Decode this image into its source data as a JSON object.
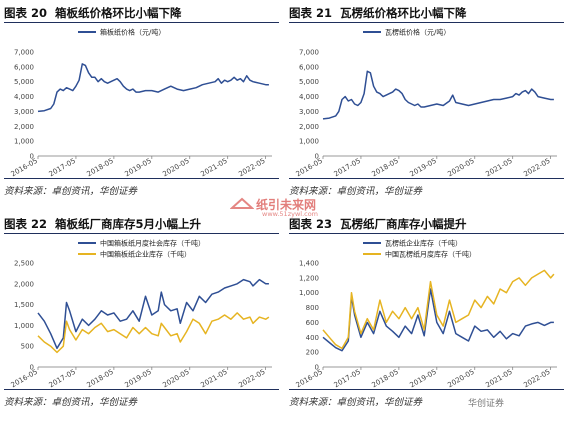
{
  "watermark": {
    "text": "纸引未来网",
    "sub": "www.51zywl.com"
  },
  "corner_mark": "华创证券",
  "colors": {
    "blue": "#2f4f94",
    "gold": "#e6b422",
    "rule": "#1f2f5c"
  },
  "chart_data": [
    {
      "id": "chart20",
      "figure_label": "图表 20",
      "title": "箱板纸价格环比小幅下降",
      "source": "资料来源：卓创资讯，华创证券",
      "type": "line",
      "x_ticks": [
        "2016-05",
        "2017-05",
        "2018-05",
        "2019-05",
        "2020-05",
        "2021-05",
        "2022-05"
      ],
      "x_range": [
        2016.333,
        2022.5
      ],
      "ylim": [
        0,
        7000
      ],
      "y_ticks": [
        0,
        1000,
        2000,
        3000,
        4000,
        5000,
        6000,
        7000
      ],
      "y_tick_labels": [
        "0",
        "1,000",
        "2,000",
        "3,000",
        "4,000",
        "5,000",
        "6,000",
        "7,000"
      ],
      "legend_position": "top",
      "series": [
        {
          "name": "箱板纸价格（元/吨）",
          "color": "#2f4f94",
          "x": [
            2016.333,
            2016.5,
            2016.667,
            2016.75,
            2016.833,
            2016.917,
            2017.0,
            2017.083,
            2017.167,
            2017.25,
            2017.333,
            2017.417,
            2017.5,
            2017.583,
            2017.667,
            2017.75,
            2017.833,
            2017.917,
            2018.0,
            2018.083,
            2018.167,
            2018.25,
            2018.333,
            2018.417,
            2018.5,
            2018.583,
            2018.667,
            2018.75,
            2018.833,
            2018.917,
            2019.0,
            2019.167,
            2019.333,
            2019.5,
            2019.667,
            2019.833,
            2020.0,
            2020.167,
            2020.333,
            2020.5,
            2020.667,
            2020.833,
            2021.0,
            2021.083,
            2021.167,
            2021.25,
            2021.333,
            2021.417,
            2021.5,
            2021.583,
            2021.667,
            2021.75,
            2021.833,
            2021.917,
            2022.0,
            2022.167,
            2022.333,
            2022.417
          ],
          "y": [
            3000,
            3050,
            3200,
            3500,
            4300,
            4500,
            4400,
            4600,
            4500,
            4400,
            4700,
            5100,
            6200,
            6100,
            5600,
            5300,
            5300,
            5000,
            5200,
            5000,
            4900,
            5000,
            5100,
            5200,
            5000,
            4700,
            4500,
            4400,
            4500,
            4300,
            4300,
            4400,
            4400,
            4300,
            4500,
            4700,
            4500,
            4400,
            4500,
            4600,
            4800,
            4900,
            5000,
            5200,
            4900,
            5100,
            5000,
            5100,
            5300,
            5100,
            5200,
            5000,
            5400,
            5100,
            5000,
            4900,
            4800,
            4800
          ]
        }
      ]
    },
    {
      "id": "chart21",
      "figure_label": "图表 21",
      "title": "瓦楞纸价格环比小幅下降",
      "source": "资料来源：卓创资讯，华创证券",
      "type": "line",
      "x_ticks": [
        "2016-05",
        "2017-05",
        "2018-05",
        "2019-05",
        "2020-05",
        "2021-05",
        "2022-05"
      ],
      "x_range": [
        2016.333,
        2022.5
      ],
      "ylim": [
        0,
        7000
      ],
      "y_ticks": [
        0,
        1000,
        2000,
        3000,
        4000,
        5000,
        6000,
        7000
      ],
      "y_tick_labels": [
        "0",
        "1,000",
        "2,000",
        "3,000",
        "4,000",
        "5,000",
        "6,000",
        "7,000"
      ],
      "legend_position": "top",
      "series": [
        {
          "name": "瓦楞纸价格（元/吨）",
          "color": "#2f4f94",
          "x": [
            2016.333,
            2016.5,
            2016.667,
            2016.75,
            2016.833,
            2016.917,
            2017.0,
            2017.083,
            2017.167,
            2017.25,
            2017.333,
            2017.417,
            2017.5,
            2017.583,
            2017.667,
            2017.75,
            2017.833,
            2017.917,
            2018.0,
            2018.083,
            2018.167,
            2018.25,
            2018.333,
            2018.417,
            2018.5,
            2018.583,
            2018.667,
            2018.75,
            2018.833,
            2018.917,
            2019.0,
            2019.167,
            2019.333,
            2019.5,
            2019.667,
            2019.75,
            2019.833,
            2020.0,
            2020.167,
            2020.333,
            2020.5,
            2020.667,
            2020.833,
            2021.0,
            2021.167,
            2021.333,
            2021.417,
            2021.5,
            2021.583,
            2021.667,
            2021.75,
            2021.833,
            2021.917,
            2022.0,
            2022.167,
            2022.333,
            2022.417
          ],
          "y": [
            2500,
            2550,
            2700,
            3000,
            3800,
            4000,
            3700,
            3800,
            3500,
            3400,
            3600,
            4200,
            5700,
            5600,
            4700,
            4300,
            4200,
            4000,
            4100,
            4200,
            4300,
            4500,
            4400,
            4200,
            3800,
            3600,
            3500,
            3400,
            3500,
            3300,
            3300,
            3400,
            3500,
            3400,
            3700,
            4100,
            3600,
            3500,
            3400,
            3500,
            3600,
            3700,
            3800,
            3800,
            3900,
            4000,
            4200,
            4100,
            4300,
            4400,
            4200,
            4500,
            4300,
            4000,
            3900,
            3800,
            3800
          ]
        }
      ]
    },
    {
      "id": "chart22",
      "figure_label": "图表 22",
      "title": "箱板纸厂商库存5月小幅上升",
      "source": "资料来源：卓创资讯，华创证券",
      "type": "line",
      "x_ticks": [
        "2016-05",
        "2017-05",
        "2018-05",
        "2019-05",
        "2020-05",
        "2021-05",
        "2022-05"
      ],
      "x_range": [
        2016.333,
        2022.5
      ],
      "ylim": [
        0,
        2500
      ],
      "y_ticks": [
        0,
        500,
        1000,
        1500,
        2000,
        2500
      ],
      "y_tick_labels": [
        "0",
        "500",
        "1,000",
        "1,500",
        "2,000",
        "2,500"
      ],
      "legend_position": "top",
      "series": [
        {
          "name": "中国箱板纸月度社会库存（千吨）",
          "color": "#2f4f94",
          "x": [
            2016.333,
            2016.5,
            2016.667,
            2016.833,
            2017.0,
            2017.083,
            2017.167,
            2017.333,
            2017.5,
            2017.667,
            2017.833,
            2018.0,
            2018.167,
            2018.333,
            2018.5,
            2018.667,
            2018.833,
            2019.0,
            2019.167,
            2019.333,
            2019.5,
            2019.583,
            2019.667,
            2019.833,
            2020.0,
            2020.083,
            2020.25,
            2020.417,
            2020.583,
            2020.75,
            2020.917,
            2021.083,
            2021.25,
            2021.417,
            2021.583,
            2021.75,
            2021.917,
            2022.0,
            2022.167,
            2022.333,
            2022.417
          ],
          "y": [
            1300,
            1100,
            800,
            450,
            700,
            1550,
            1350,
            850,
            1150,
            1000,
            1150,
            1350,
            1250,
            1300,
            1100,
            1150,
            1350,
            1100,
            1700,
            1250,
            1350,
            1800,
            1500,
            1350,
            1400,
            1050,
            1550,
            1350,
            1700,
            1550,
            1750,
            1800,
            1900,
            1950,
            2000,
            2100,
            2050,
            1950,
            2100,
            2000,
            2000
          ]
        },
        {
          "name": "中国箱板纸企业库存（千吨）",
          "color": "#e6b422",
          "x": [
            2016.333,
            2016.5,
            2016.667,
            2016.833,
            2017.0,
            2017.083,
            2017.167,
            2017.333,
            2017.5,
            2017.667,
            2017.833,
            2018.0,
            2018.167,
            2018.333,
            2018.5,
            2018.667,
            2018.833,
            2019.0,
            2019.167,
            2019.333,
            2019.5,
            2019.583,
            2019.667,
            2019.833,
            2020.0,
            2020.083,
            2020.25,
            2020.417,
            2020.583,
            2020.75,
            2020.917,
            2021.083,
            2021.25,
            2021.417,
            2021.583,
            2021.75,
            2021.917,
            2022.0,
            2022.167,
            2022.333,
            2022.417
          ],
          "y": [
            750,
            600,
            500,
            350,
            500,
            1100,
            900,
            650,
            900,
            800,
            950,
            1050,
            850,
            900,
            800,
            700,
            950,
            800,
            950,
            800,
            750,
            1050,
            950,
            750,
            800,
            600,
            850,
            1150,
            1050,
            800,
            1100,
            1150,
            1250,
            1150,
            1300,
            1150,
            1200,
            1050,
            1200,
            1150,
            1200
          ]
        }
      ]
    },
    {
      "id": "chart23",
      "figure_label": "图表 23",
      "title": "瓦楞纸厂商库存小幅提升",
      "source": "资料来源：卓创资讯，华创证券",
      "type": "line",
      "x_ticks": [
        "2016-05",
        "2017-05",
        "2018-05",
        "2019-05",
        "2020-05",
        "2021-05",
        "2022-05"
      ],
      "x_range": [
        2016.333,
        2022.5
      ],
      "ylim": [
        0,
        1400
      ],
      "y_ticks": [
        0,
        200,
        400,
        600,
        800,
        1000,
        1200,
        1400
      ],
      "y_tick_labels": [
        "0",
        "200",
        "400",
        "600",
        "800",
        "1,000",
        "1,200",
        "1,400"
      ],
      "legend_position": "top",
      "series": [
        {
          "name": "瓦楞纸企业库存（千吨）",
          "color": "#2f4f94",
          "x": [
            2016.333,
            2016.5,
            2016.667,
            2016.833,
            2017.0,
            2017.083,
            2017.167,
            2017.333,
            2017.5,
            2017.667,
            2017.833,
            2018.0,
            2018.167,
            2018.333,
            2018.5,
            2018.667,
            2018.833,
            2019.0,
            2019.167,
            2019.333,
            2019.5,
            2019.667,
            2019.833,
            2020.0,
            2020.167,
            2020.333,
            2020.5,
            2020.667,
            2020.833,
            2021.0,
            2021.167,
            2021.333,
            2021.5,
            2021.667,
            2021.833,
            2022.0,
            2022.167,
            2022.333,
            2022.417
          ],
          "y": [
            400,
            330,
            260,
            220,
            350,
            950,
            700,
            400,
            600,
            450,
            750,
            550,
            480,
            400,
            550,
            450,
            700,
            420,
            1050,
            600,
            450,
            750,
            450,
            400,
            350,
            550,
            480,
            500,
            400,
            480,
            380,
            450,
            420,
            550,
            580,
            600,
            560,
            600,
            600
          ]
        },
        {
          "name": "中国瓦楞纸月度库存（千吨）",
          "color": "#e6b422",
          "x": [
            2016.333,
            2016.5,
            2016.667,
            2016.833,
            2017.0,
            2017.083,
            2017.167,
            2017.333,
            2017.5,
            2017.667,
            2017.833,
            2018.0,
            2018.167,
            2018.333,
            2018.5,
            2018.667,
            2018.833,
            2019.0,
            2019.167,
            2019.333,
            2019.5,
            2019.667,
            2019.833,
            2020.0,
            2020.167,
            2020.333,
            2020.5,
            2020.667,
            2020.833,
            2021.0,
            2021.167,
            2021.333,
            2021.5,
            2021.667,
            2021.833,
            2022.0,
            2022.167,
            2022.333,
            2022.417
          ],
          "y": [
            500,
            400,
            300,
            250,
            400,
            1000,
            750,
            450,
            650,
            500,
            900,
            600,
            750,
            650,
            800,
            650,
            800,
            500,
            1150,
            700,
            550,
            900,
            600,
            650,
            700,
            900,
            800,
            950,
            850,
            1050,
            1000,
            1150,
            1200,
            1100,
            1200,
            1250,
            1300,
            1200,
            1250
          ]
        }
      ]
    }
  ]
}
